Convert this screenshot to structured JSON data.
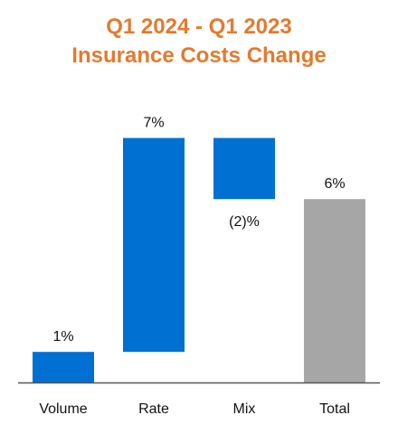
{
  "chart_data": {
    "type": "bar",
    "subtype": "waterfall",
    "title_lines": [
      "Q1 2024 - Q1 2023",
      "Insurance Costs Change"
    ],
    "categories": [
      "Volume",
      "Rate",
      "Mix",
      "Total"
    ],
    "values": [
      1,
      7,
      -2,
      6
    ],
    "value_labels": [
      "1%",
      "7%",
      "(2)%",
      "6%"
    ],
    "unit": "%",
    "xlabel": "",
    "ylabel": "",
    "ylim": [
      0,
      8
    ],
    "grid": false,
    "legend": "none"
  },
  "colors": {
    "title": "#E37A2E",
    "change_bar": "#0070D2",
    "total_bar": "#A6A6A6",
    "axis": "#555555",
    "text": "#111111"
  }
}
